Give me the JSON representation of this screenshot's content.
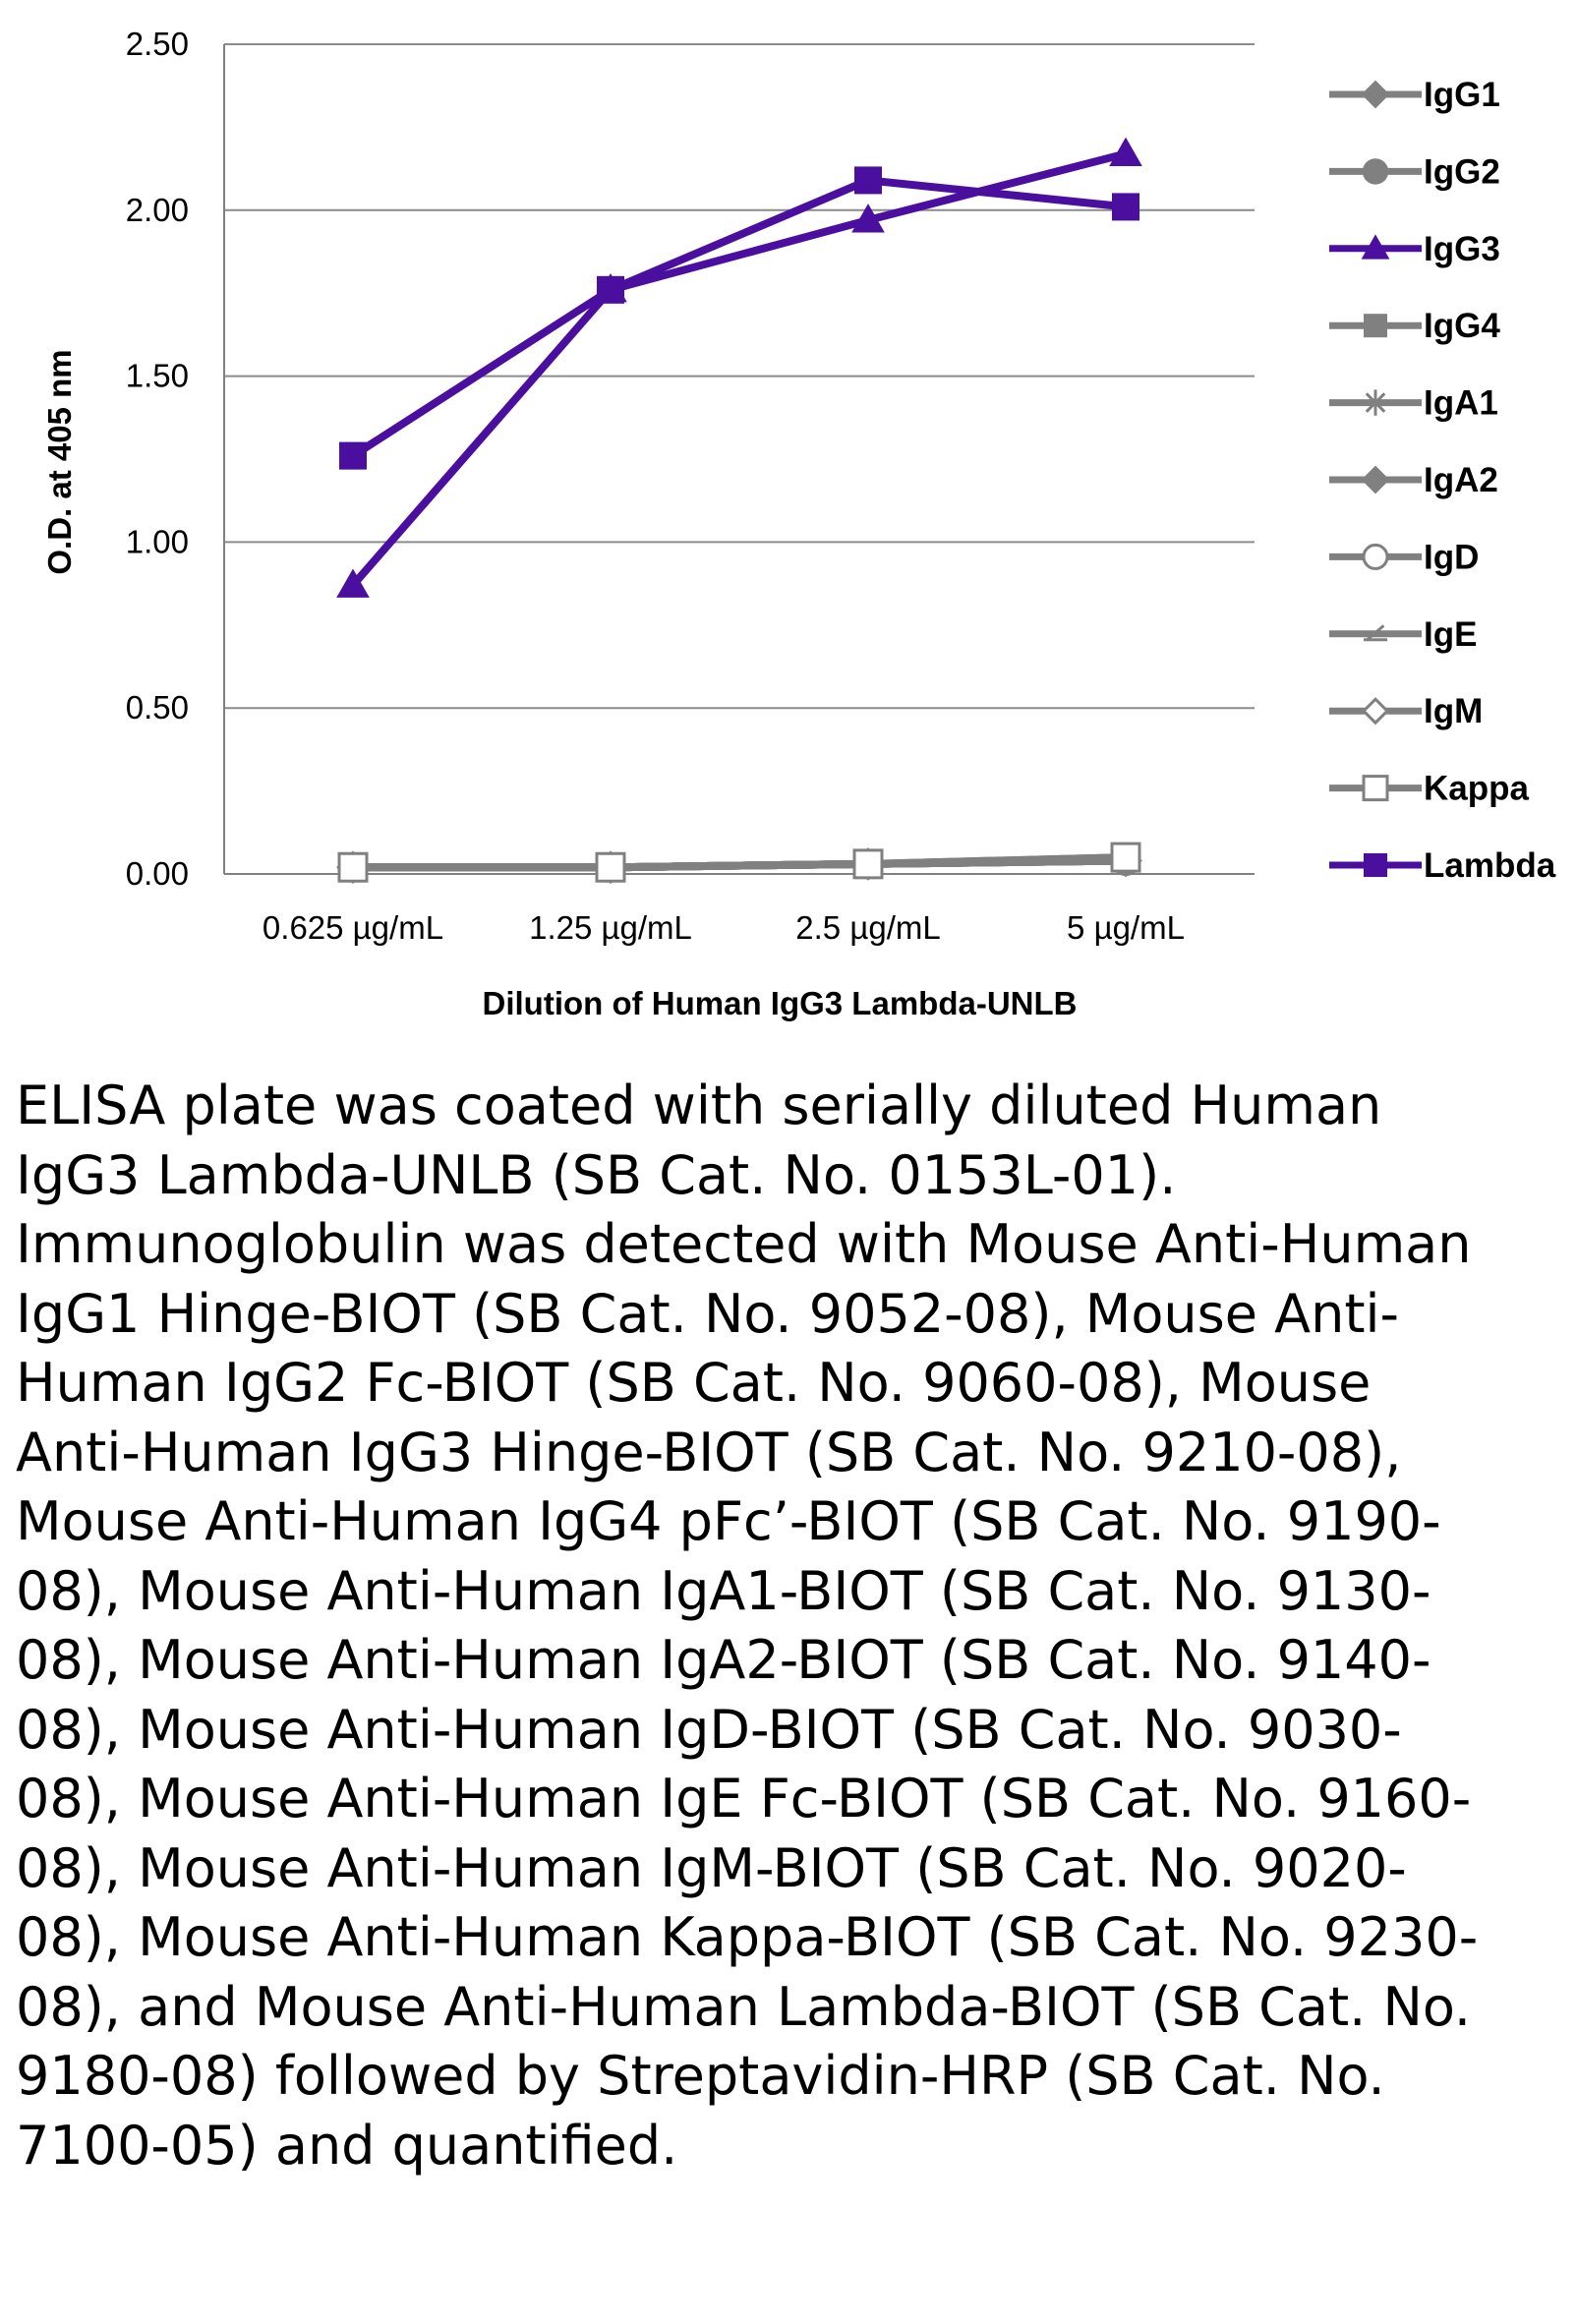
{
  "chart_data": {
    "type": "line",
    "title": "",
    "xlabel": "Dilution of Human IgG3 Lambda-UNLB",
    "ylabel": "O.D. at 405 nm",
    "categories": [
      "0.625 µg/mL",
      "1.25 µg/mL",
      "2.5 µg/mL",
      "5 µg/mL"
    ],
    "ylim": [
      0,
      2.5
    ],
    "yticks": [
      "0.00",
      "0.50",
      "1.00",
      "1.50",
      "2.00",
      "2.50"
    ],
    "grid": true,
    "legend_position": "right",
    "series": [
      {
        "name": "IgG1",
        "values": [
          0.02,
          0.02,
          0.03,
          0.04
        ],
        "color": "#808080",
        "marker": "diamond"
      },
      {
        "name": "IgG2",
        "values": [
          0.02,
          0.02,
          0.03,
          0.04
        ],
        "color": "#808080",
        "marker": "circle"
      },
      {
        "name": "IgG3",
        "values": [
          0.87,
          1.76,
          1.97,
          2.17
        ],
        "color": "#4b0fa0",
        "marker": "triangle"
      },
      {
        "name": "IgG4",
        "values": [
          0.02,
          0.02,
          0.03,
          0.05
        ],
        "color": "#808080",
        "marker": "square"
      },
      {
        "name": "IgA1",
        "values": [
          0.02,
          0.02,
          0.03,
          0.04
        ],
        "color": "#808080",
        "marker": "star"
      },
      {
        "name": "IgA2",
        "values": [
          0.02,
          0.02,
          0.03,
          0.04
        ],
        "color": "#808080",
        "marker": "diamond"
      },
      {
        "name": "IgD",
        "values": [
          0.02,
          0.02,
          0.03,
          0.04
        ],
        "color": "#808080",
        "marker": "circle-open"
      },
      {
        "name": "IgE",
        "values": [
          0.02,
          0.02,
          0.03,
          0.04
        ],
        "color": "#808080",
        "marker": "dash"
      },
      {
        "name": "IgM",
        "values": [
          0.02,
          0.02,
          0.03,
          0.04
        ],
        "color": "#808080",
        "marker": "diamond-open"
      },
      {
        "name": "Kappa",
        "values": [
          0.02,
          0.02,
          0.03,
          0.05
        ],
        "color": "#808080",
        "marker": "square-open"
      },
      {
        "name": "Lambda",
        "values": [
          1.26,
          1.76,
          2.09,
          2.01
        ],
        "color": "#4b0fa0",
        "marker": "square"
      }
    ]
  },
  "caption": "ELISA plate was coated with serially diluted Human IgG3 Lambda-UNLB (SB Cat. No. 0153L-01).  Immunoglobulin was detected with Mouse Anti-Human IgG1 Hinge-BIOT (SB Cat. No. 9052-08), Mouse Anti-Human IgG2 Fc-BIOT (SB Cat. No. 9060-08), Mouse Anti-Human IgG3 Hinge-BIOT (SB Cat. No. 9210-08), Mouse Anti-Human IgG4 pFc’-BIOT (SB Cat. No. 9190-08), Mouse Anti-Human IgA1-BIOT (SB Cat. No. 9130-08), Mouse Anti-Human IgA2-BIOT (SB Cat. No. 9140-08),  Mouse Anti-Human IgD-BIOT (SB Cat. No. 9030-08), Mouse Anti-Human IgE Fc-BIOT (SB Cat. No. 9160-08), Mouse Anti-Human IgM-BIOT (SB Cat. No. 9020-08), Mouse Anti-Human Kappa-BIOT (SB Cat. No. 9230-08), and Mouse Anti-Human Lambda-BIOT (SB Cat. No. 9180-08) followed by Streptavidin-HRP (SB Cat. No. 7100-05) and quantified."
}
